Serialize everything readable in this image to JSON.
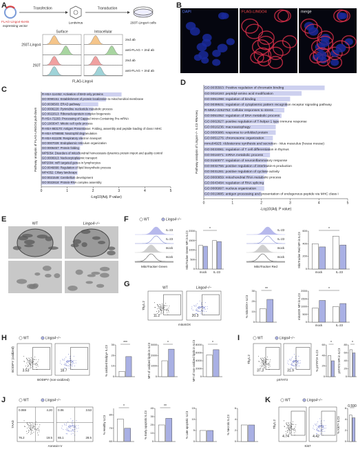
{
  "genotype_colors": [
    "#ffffff",
    "#a9b0e4"
  ],
  "A": {
    "letter": "A",
    "vector": [
      "FLAG-Lingo4-6xHis",
      "expressing vector"
    ],
    "steps": [
      "Transfection",
      "Transduction"
    ],
    "virus": "Lentivirus",
    "cells": "293T-Lingo4 cells",
    "columns": [
      "Surface",
      "Intracellular"
    ],
    "rows": [
      "293T-Lingo4",
      "293T"
    ],
    "legend": [
      "2nd ab",
      "anti-FLAG + 2nd ab",
      "2nd ab",
      "anti-FLAG + 2nd ab"
    ],
    "xlabel": "FLAG-Lingo4"
  },
  "B": {
    "letter": "B",
    "images": [
      "DAPI",
      "FLAG-LINGO4",
      "merge"
    ]
  },
  "C": {
    "letter": "C",
    "ylabel": "Pathway analysis of FLAG-LINGO4 pull-down",
    "xlabel": "-Log10(Adj. P value)",
    "xlim": [
      0,
      5
    ],
    "xticks": [
      0,
      1,
      2,
      3,
      4,
      5
    ],
    "color": "#cdd0ef",
    "items": [
      {
        "label": "R-HSA-114452: Activation of BH3-only proteins",
        "value": 3.1
      },
      {
        "label": "GO:0090151: Establishment of protein localization to mitochondrial membrane",
        "value": 2.5
      },
      {
        "label": "GO:0036503: ERAD pathway",
        "value": 2.2
      },
      {
        "label": "GO:0006220: Pyrimidine nucleotide metabolic process",
        "value": 2.0
      },
      {
        "label": "GO:0022613: Ribonucleoprotein complex biogenesis",
        "value": 1.9
      },
      {
        "label": "R-HSA-72203: Processing of Capped Intron-Containing Pre-mRNA",
        "value": 1.8
      },
      {
        "label": "GO:1903047: Mitotic cell cycle process",
        "value": 1.8
      },
      {
        "label": "R-HSA-983170: Antigen Presentation: Folding, assembly and peptide loading of class I MHC",
        "value": 1.7
      },
      {
        "label": "R-HSA-6798695: Neutrophil degranulation",
        "value": 1.7
      },
      {
        "label": "R-HSA-611105: Respiratory electron transport",
        "value": 1.6
      },
      {
        "label": "GO:0007029: Endoplasmic reticulum organization",
        "value": 1.6
      },
      {
        "label": "GO:0006457: Protein folding",
        "value": 1.5
      },
      {
        "label": "WP5054: Disorders of mitochondrial homeostasis dynamics protein import and quality control",
        "value": 1.5
      },
      {
        "label": "GO:0006913: Nucleocytoplasmic transport",
        "value": 1.5
      },
      {
        "label": "WP2004: miR targeted genes in lymphocytes",
        "value": 1.4
      },
      {
        "label": "GO:0046890: Regulation of lipid biosynthetic process",
        "value": 1.4
      },
      {
        "label": "WP4352: Ciliary landscape",
        "value": 1.4
      },
      {
        "label": "GO:0021549: Cerebellum development",
        "value": 1.3
      },
      {
        "label": "GO:0022618: Protein-RNA complex assembly",
        "value": 1.3
      }
    ]
  },
  "D": {
    "letter": "D",
    "ylabel": "Pathway analysis of Lingo4−/− ILC3 RNAseq",
    "xlabel": "-Log10(Adj. P value)",
    "xlim": [
      0,
      5
    ],
    "xticks": [
      0,
      1,
      2,
      3,
      4,
      5
    ],
    "color": "#cdd0ef",
    "items": [
      {
        "label": "GO:0035563: Positive regulation of chromatin binding",
        "value": 4.2
      },
      {
        "label": "GO:0018193: peptidyl-amino acid modification",
        "value": 3.4
      },
      {
        "label": "GO:0051098: regulation of binding",
        "value": 3.0
      },
      {
        "label": "GO:0039531: regulation of cytoplasmic pattern recognition receptor signaling pathway",
        "value": 2.9
      },
      {
        "label": "R-MMU-2262752: Cellular responses to stress",
        "value": 2.8
      },
      {
        "label": "GO:0051052: regulation of DNA metabolic process",
        "value": 2.7
      },
      {
        "label": "GO:0002827: positive regulation of T-helper 1 type immune response",
        "value": 2.6
      },
      {
        "label": "GO:0016236: macroautophagy",
        "value": 2.5
      },
      {
        "label": "GO:0006986: response to unfolded protein",
        "value": 2.5
      },
      {
        "label": "GO:0051276: chromosome organization",
        "value": 2.4
      },
      {
        "label": "mmu04925: Aldosterone synthesis and secretion - Mus musculus (house mouse)",
        "value": 2.4
      },
      {
        "label": "GO:0033081: regulation of T cell differentiation in thymus",
        "value": 2.3
      },
      {
        "label": "GO:0016071: mRNA metabolic process",
        "value": 2.3
      },
      {
        "label": "GO:0150077: regulation of neuroinflammatory response",
        "value": 2.2
      },
      {
        "label": "GO:0032755: positive regulation of interleukin-6 production",
        "value": 2.2
      },
      {
        "label": "GO:0031281: positive regulation of cyclase activity",
        "value": 2.2
      },
      {
        "label": "GO:0000959: mitochondrial RNA metabolic process",
        "value": 2.1
      },
      {
        "label": "GO:0043484: regulation of RNA splicing",
        "value": 2.1
      },
      {
        "label": "GO:0006997: nucleus organization",
        "value": 2.1
      },
      {
        "label": "GO:0019885: antigen processing and presentation of endogenous peptide via MHC class I",
        "value": 2.0
      }
    ]
  },
  "E": {
    "letter": "E",
    "titles": [
      "WT",
      "Lingo4−/−"
    ]
  },
  "F": {
    "letter": "F",
    "legend": [
      "WT",
      "Lingo4−/−"
    ],
    "hist1": {
      "labels": [
        "IL-23",
        "IL-23",
        "mock",
        "mock"
      ],
      "xlabel": "MitoTracker Green"
    },
    "hist2": {
      "labels": [
        "IL-23",
        "IL-23",
        "mock",
        "mock"
      ],
      "xlabel": "MitoTracker Red"
    },
    "bars1": {
      "ylabel": "MitoTracker Green MFI in ILC3",
      "ylim": [
        0,
        2000
      ],
      "yticks": [
        0,
        500,
        1000,
        1500,
        2000
      ],
      "groups": [
        {
          "category": "mock",
          "values": [
            1250,
            1200
          ]
        },
        {
          "category": "IL-23",
          "values": [
            1500,
            1450
          ]
        }
      ],
      "sig": "*"
    },
    "bars2": {
      "ylabel": "MitoTracker Red MFI in ILC3",
      "ylim": [
        0,
        600
      ],
      "yticks": [
        0,
        200,
        400,
        600
      ],
      "groups": [
        {
          "category": "mock",
          "values": [
            400,
            350
          ]
        },
        {
          "category": "IL-23",
          "values": [
            520,
            380
          ]
        }
      ],
      "sig": "*"
    }
  },
  "G": {
    "letter": "G",
    "flow": {
      "titles": [
        "WT",
        "Lingo4−/−"
      ],
      "ylabel": "Thy1.2",
      "xlabel": "mitoSOX",
      "percents": [
        "11.2",
        "20.3"
      ]
    },
    "bars1": {
      "ylabel": "% mitoSOX+ ILC3",
      "ylim": [
        0,
        30
      ],
      "yticks": [
        0,
        10,
        20,
        30
      ],
      "groups": [
        {
          "values": [
            13,
            22
          ]
        }
      ],
      "sig": "**"
    },
    "bars2": {
      "ylabel": "mitoSOX MFI in ILC3",
      "ylim": [
        0,
        2000
      ],
      "yticks": [
        0,
        500,
        1000,
        1500,
        2000
      ],
      "groups": [
        {
          "category": "mock",
          "values": [
            900,
            1400
          ]
        },
        {
          "category": "IL-23",
          "values": [
            1000,
            1200
          ]
        }
      ],
      "sig": "*"
    }
  },
  "H": {
    "letter": "H",
    "legend": [
      "WT",
      "Lingo4−/−"
    ],
    "flow": {
      "ylabel": "BODIPY (oxidized)",
      "xlabel": "BODIPY (non-oxidized)",
      "percents": [
        "3.53",
        "18.7"
      ]
    },
    "bars1": {
      "ylabel": "% oxidized Bodipy+ ILC3",
      "ylim": [
        0,
        30
      ],
      "yticks": [
        0,
        10,
        20,
        30
      ],
      "groups": [
        {
          "values": [
            5,
            19
          ]
        }
      ],
      "sig": "***"
    },
    "bars2": {
      "ylabel": "MFI of oxidized lipids in ILC3",
      "ylim": [
        0,
        3000
      ],
      "yticks": [
        0,
        1000,
        2000,
        3000
      ],
      "groups": [
        {
          "values": [
            1500,
            2600
          ]
        }
      ],
      "sig": "*"
    },
    "bars3": {
      "ylabel": "MFI of non-oxidized lipids in ILC3",
      "ylim": [
        0,
        8000
      ],
      "yticks": [
        0,
        2000,
        4000,
        6000,
        8000
      ],
      "groups": [
        {
          "values": [
            5500,
            6800
          ]
        }
      ],
      "sig": "*"
    }
  },
  "I": {
    "letter": "I",
    "legend": [
      "WT",
      "Lingo4−/−"
    ],
    "flow": {
      "ylabel": "Thy1.2",
      "xlabel": "pSTAT3",
      "percents": [
        "37.3",
        "31.9"
      ]
    },
    "bars1": {
      "ylabel": "% pSTAT3+ ILC3",
      "ylim": [
        0,
        60
      ],
      "yticks": [
        0,
        20,
        40,
        60
      ],
      "groups": [
        {
          "values": [
            40,
            30
          ]
        }
      ],
      "sig": "*"
    },
    "bars2": {
      "ylabel": "pSTAT3 MFI in ILC3",
      "ylim": [
        0,
        80
      ],
      "yticks": [
        0,
        20,
        40,
        60,
        80
      ],
      "groups": [
        {
          "values": [
            68,
            60
          ]
        }
      ],
      "sig": "*"
    }
  },
  "J": {
    "letter": "J",
    "legend": [
      "WT",
      "Lingo4−/−"
    ],
    "flow": {
      "ylabel": "7AAD",
      "xlabel": "Annexin-V",
      "percents": [
        [
          "0.069",
          "4.20",
          "76.2",
          "19.5"
        ],
        [
          "0.06",
          "3.53",
          "65.1",
          "28.5"
        ]
      ]
    },
    "bars1": {
      "ylabel": "% Healthy ILC3",
      "ylim": [
        60,
        85
      ],
      "yticks": [
        60,
        70,
        80
      ],
      "groups": [
        {
          "values": [
            77,
            70
          ]
        }
      ],
      "sig": "*"
    },
    "bars2": {
      "ylabel": "% Early apoptotic ILC3",
      "ylim": [
        0,
        40
      ],
      "yticks": [
        0,
        10,
        20,
        30,
        40
      ],
      "groups": [
        {
          "values": [
            20,
            28
          ]
        }
      ],
      "sig": "**"
    },
    "bars3": {
      "ylabel": "% Late apoptotic ILC3",
      "ylim": [
        0,
        15
      ],
      "yticks": [
        0,
        5,
        10,
        15
      ],
      "groups": [
        {
          "values": [
            5,
            5
          ]
        }
      ]
    },
    "bars4": {
      "ylabel": "% Necrotic ILC3",
      "ylim": [
        0,
        6
      ],
      "yticks": [
        0,
        2,
        4,
        6
      ],
      "groups": [
        {
          "values": [
            3,
            3
          ]
        }
      ]
    }
  },
  "K": {
    "letter": "K",
    "legend": [
      "WT",
      "Lingo4−/−"
    ],
    "flow": {
      "ylabel": "Thy1.2",
      "xlabel": "Ki67",
      "percents": [
        "4.74",
        "4.42"
      ]
    },
    "bars1": {
      "ylabel": "% Ki67+ ILC3",
      "ylim": [
        0,
        6
      ],
      "yticks": [
        0,
        2,
        4,
        6
      ],
      "groups": [
        {
          "values": [
            4.8,
            4.3
          ]
        }
      ],
      "sig": "0.590"
    }
  }
}
